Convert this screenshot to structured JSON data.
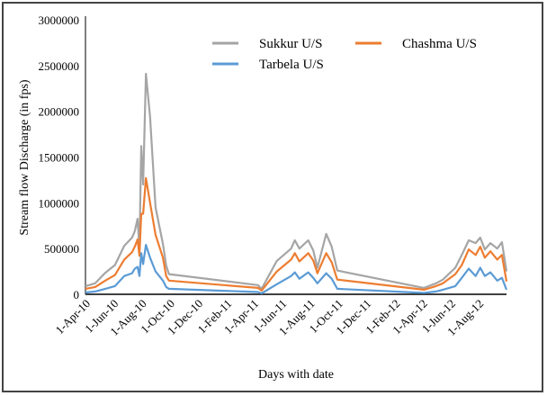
{
  "chart_data": {
    "type": "line",
    "title": "",
    "xlabel": "Days with date",
    "ylabel": "Stream flow  Discharge (in fps)",
    "ylim": [
      0,
      3000000
    ],
    "yticks": [
      0,
      500000,
      1000000,
      1500000,
      2000000,
      2500000,
      3000000
    ],
    "ytick_labels": [
      "0",
      "500000",
      "1000000",
      "1500000",
      "2000000",
      "2500000",
      "3000000"
    ],
    "x_start_date": "1-Apr-10",
    "x_range_days": [
      0,
      913
    ],
    "xtick_labels": [
      "1-Apr-10",
      "1-Jun-10",
      "1-Aug-10",
      "1-Oct-10",
      "1-Dec-10",
      "1-Feb-11",
      "1-Apr-11",
      "1-Jun-11",
      "1-Aug-11",
      "1-Oct-11",
      "1-Dec-11",
      "1-Feb-12",
      "1-Apr-12",
      "1-Jun-12",
      "1-Aug-12"
    ],
    "xtick_days": [
      0,
      61,
      122,
      183,
      244,
      307,
      365,
      426,
      487,
      548,
      609,
      672,
      731,
      792,
      853
    ],
    "legend_position": "top-right",
    "x_days": [
      0,
      21,
      43,
      64,
      84,
      101,
      107,
      113,
      117,
      121,
      125,
      131,
      140,
      152,
      168,
      175,
      181,
      374,
      382,
      415,
      446,
      454,
      464,
      483,
      494,
      503,
      522,
      534,
      546,
      734,
      760,
      775,
      802,
      816,
      831,
      846,
      856,
      866,
      878,
      893,
      903,
      913
    ],
    "series": [
      {
        "name": "Sukkur U/S",
        "color": "#a5a5a5",
        "values": [
          90000,
          120000,
          235000,
          320000,
          530000,
          620000,
          690000,
          825000,
          500000,
          1620000,
          1200000,
          2410000,
          1940000,
          950000,
          550000,
          315000,
          220000,
          100000,
          60000,
          365000,
          500000,
          590000,
          500000,
          590000,
          480000,
          290000,
          660000,
          520000,
          260000,
          70000,
          120000,
          160000,
          290000,
          430000,
          590000,
          560000,
          620000,
          490000,
          560000,
          500000,
          570000,
          250000
        ]
      },
      {
        "name": "Chashma U/S",
        "color": "#ed7d31",
        "values": [
          60000,
          80000,
          150000,
          210000,
          380000,
          460000,
          520000,
          600000,
          420000,
          880000,
          880000,
          1270000,
          1000000,
          650000,
          400000,
          200000,
          150000,
          70000,
          40000,
          250000,
          380000,
          450000,
          360000,
          450000,
          370000,
          230000,
          450000,
          350000,
          160000,
          50000,
          90000,
          120000,
          220000,
          320000,
          490000,
          430000,
          520000,
          400000,
          470000,
          380000,
          430000,
          140000
        ]
      },
      {
        "name": "Tarbela U/S",
        "color": "#5b9bd5",
        "values": [
          20000,
          30000,
          60000,
          90000,
          200000,
          230000,
          280000,
          300000,
          200000,
          450000,
          330000,
          540000,
          400000,
          250000,
          150000,
          80000,
          60000,
          25000,
          10000,
          110000,
          200000,
          240000,
          170000,
          240000,
          180000,
          120000,
          230000,
          170000,
          60000,
          15000,
          30000,
          50000,
          90000,
          180000,
          280000,
          200000,
          290000,
          200000,
          240000,
          150000,
          180000,
          50000
        ]
      }
    ]
  }
}
